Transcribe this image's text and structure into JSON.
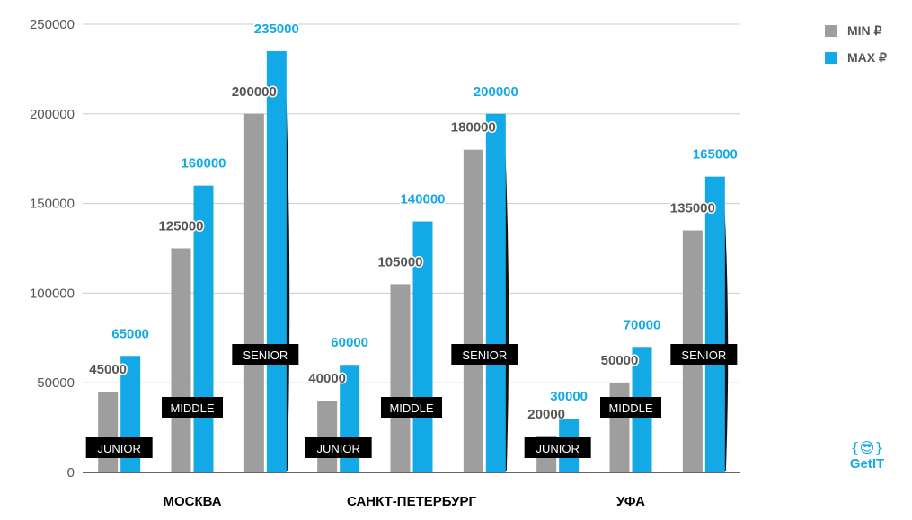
{
  "chart_data": {
    "type": "bar",
    "ylim": [
      0,
      250000
    ],
    "yticks": [
      0,
      50000,
      100000,
      150000,
      200000,
      250000
    ],
    "grid": true,
    "legend_position": "top-right",
    "groups": [
      {
        "city": "МОСКВА",
        "levels": [
          {
            "level": "JUNIOR",
            "min": 45000,
            "max": 65000
          },
          {
            "level": "MIDDLE",
            "min": 125000,
            "max": 160000
          },
          {
            "level": "SENIOR",
            "min": 200000,
            "max": 235000
          }
        ]
      },
      {
        "city": "САНКТ-ПЕТЕРБУРГ",
        "levels": [
          {
            "level": "JUNIOR",
            "min": 40000,
            "max": 60000
          },
          {
            "level": "MIDDLE",
            "min": 105000,
            "max": 140000
          },
          {
            "level": "SENIOR",
            "min": 180000,
            "max": 200000
          }
        ]
      },
      {
        "city": "УФА",
        "levels": [
          {
            "level": "JUNIOR",
            "min": 20000,
            "max": 30000
          },
          {
            "level": "MIDDLE",
            "min": 50000,
            "max": 70000
          },
          {
            "level": "SENIOR",
            "min": 135000,
            "max": 165000
          }
        ]
      }
    ],
    "series": [
      {
        "key": "min",
        "name": "MIN ₽",
        "color": "#9e9e9e"
      },
      {
        "key": "max",
        "name": "MAX ₽",
        "color": "#13a9e6"
      }
    ]
  },
  "logo": {
    "icon": "{😎}",
    "text": "GetIT"
  }
}
